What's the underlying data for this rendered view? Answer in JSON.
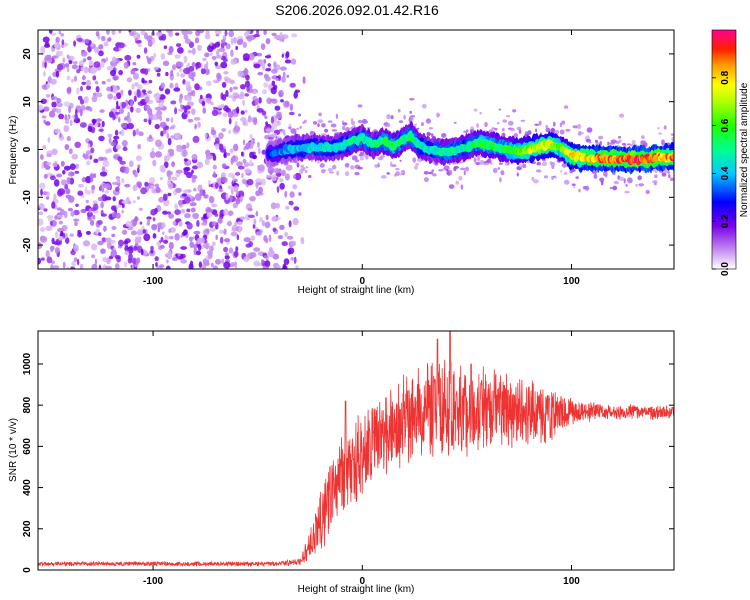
{
  "title": "S206.2026.092.01.42.R16",
  "chart_data": [
    {
      "type": "heatmap",
      "name": "spectrogram",
      "xlabel": "Height of straight line (km)",
      "ylabel": "Frequency (Hz)",
      "xlim": [
        -155,
        149
      ],
      "ylim": [
        -25,
        25
      ],
      "xticks": [
        -100,
        0,
        100
      ],
      "yticks": [
        -20,
        -10,
        0,
        10,
        20
      ],
      "colorbar": {
        "label": "Normalized spectral amplitude",
        "range": [
          0,
          1
        ],
        "ticks": [
          0.0,
          0.2,
          0.4,
          0.6,
          0.8
        ]
      },
      "noise_region": {
        "x_from": -155,
        "x_to": -35,
        "freq_from": -25,
        "freq_to": 25
      },
      "ridge": {
        "x": [
          -45,
          -35,
          -25,
          -15,
          -5,
          0,
          5,
          10,
          15,
          20,
          23,
          27,
          32,
          40,
          48,
          55,
          60,
          65,
          70,
          75,
          80,
          85,
          90,
          95,
          98,
          100,
          110,
          120,
          130,
          140,
          149
        ],
        "freq": [
          -1.0,
          0.0,
          0.5,
          0.2,
          1.5,
          2.5,
          1.0,
          1.8,
          0.6,
          2.2,
          3.0,
          1.0,
          0.0,
          -0.5,
          0.2,
          1.5,
          1.0,
          0.5,
          0.0,
          -0.4,
          0.1,
          0.6,
          1.0,
          0.3,
          -0.8,
          -1.5,
          -1.8,
          -2.0,
          -2.1,
          -1.8,
          -1.6
        ],
        "amplitude": [
          0.3,
          0.4,
          0.45,
          0.45,
          0.5,
          0.5,
          0.5,
          0.55,
          0.55,
          0.5,
          0.55,
          0.5,
          0.45,
          0.5,
          0.5,
          0.55,
          0.6,
          0.55,
          0.6,
          0.65,
          0.7,
          0.75,
          0.75,
          0.65,
          0.7,
          0.8,
          0.85,
          0.9,
          0.95,
          0.9,
          0.85
        ]
      }
    },
    {
      "type": "line",
      "name": "snr",
      "xlabel": "Height of straight line (km)",
      "ylabel": "SNR (10 * v/v)",
      "xlim": [
        -155,
        149
      ],
      "ylim": [
        0,
        1160
      ],
      "xticks": [
        -100,
        0,
        100
      ],
      "yticks": [
        0,
        200,
        400,
        600,
        800,
        1000
      ],
      "color": "#ee3333",
      "envelope": {
        "x": [
          -155,
          -40,
          -30,
          -25,
          -20,
          -15,
          -10,
          -5,
          0,
          10,
          20,
          30,
          40,
          50,
          60,
          70,
          80,
          90,
          100,
          110,
          120,
          130,
          140,
          149
        ],
        "mean": [
          30,
          30,
          40,
          120,
          250,
          380,
          450,
          520,
          560,
          650,
          720,
          760,
          790,
          780,
          780,
          770,
          760,
          750,
          770,
          770,
          765,
          770,
          765,
          770
        ],
        "spread": [
          12,
          12,
          20,
          100,
          200,
          240,
          240,
          230,
          220,
          220,
          240,
          260,
          270,
          250,
          230,
          200,
          180,
          150,
          80,
          50,
          40,
          40,
          40,
          40
        ]
      },
      "peaks": [
        {
          "x": -8,
          "y": 820
        },
        {
          "x": 36,
          "y": 1120
        },
        {
          "x": 42,
          "y": 1160
        },
        {
          "x": 52,
          "y": 1000
        }
      ]
    }
  ]
}
